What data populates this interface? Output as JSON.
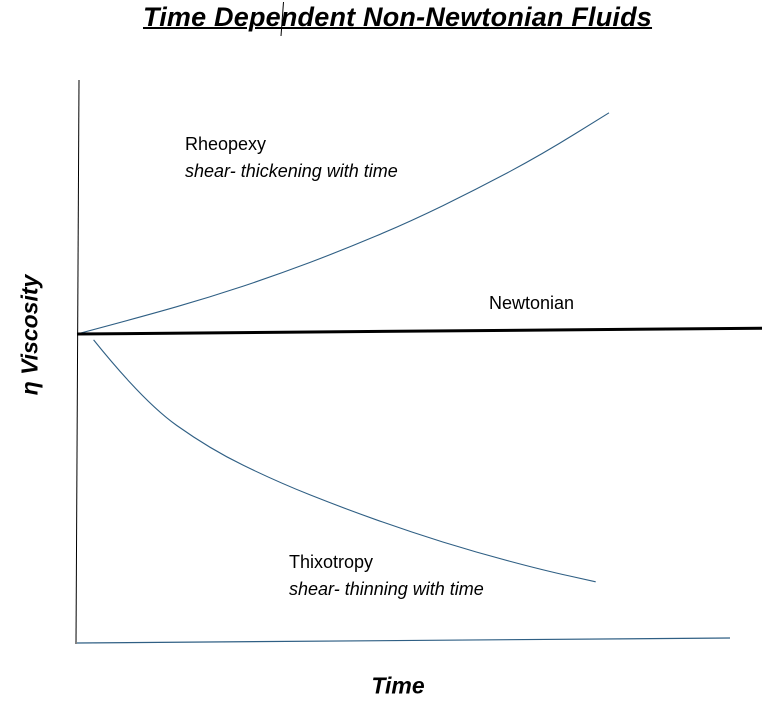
{
  "chart_data": {
    "type": "line",
    "title": "Time Dependent Non-Newtonian Fluids",
    "xlabel": "Time",
    "ylabel": "η Viscosity",
    "grid": false,
    "legend": "none",
    "series": [
      {
        "name": "Rheopexy",
        "description": "shear- thickening with time",
        "color": "#2f5f84",
        "points": [
          [
            0,
            0
          ],
          [
            0.1,
            0.06
          ],
          [
            0.2,
            0.125
          ],
          [
            0.3,
            0.2
          ],
          [
            0.4,
            0.285
          ],
          [
            0.5,
            0.38
          ],
          [
            0.6,
            0.49
          ],
          [
            0.7,
            0.61
          ],
          [
            0.8,
            0.75
          ]
        ]
      },
      {
        "name": "Newtonian",
        "color": "#000000",
        "points": [
          [
            0,
            0
          ],
          [
            1.05,
            0.02
          ]
        ]
      },
      {
        "name": "Thixotropy",
        "description": "shear- thinning with time",
        "color": "#2f5f84",
        "points": [
          [
            0.025,
            -0.02
          ],
          [
            0.1,
            -0.23
          ],
          [
            0.2,
            -0.39
          ],
          [
            0.3,
            -0.5
          ],
          [
            0.4,
            -0.59
          ],
          [
            0.5,
            -0.67
          ],
          [
            0.6,
            -0.74
          ],
          [
            0.7,
            -0.8
          ],
          [
            0.78,
            -0.84
          ]
        ]
      }
    ]
  }
}
